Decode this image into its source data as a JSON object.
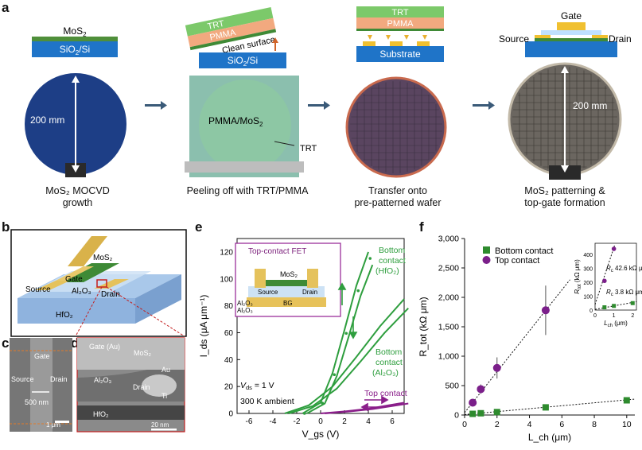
{
  "panel_a": {
    "letter": "a",
    "stack1": {
      "mos2": "MoS",
      "mos2_sub": "2",
      "substrate": "SiO",
      "substrate_sub": "2",
      "substrate_tail": "/Si"
    },
    "stack2": {
      "trt": "TRT",
      "pmma": "PMMA",
      "clean": "Clean surface",
      "substrate": "SiO",
      "substrate_sub": "2",
      "substrate_tail": "/Si"
    },
    "stack3": {
      "trt": "TRT",
      "pmma": "PMMA",
      "substrate": "Substrate"
    },
    "stack4": {
      "gate": "Gate",
      "source": "Source",
      "drain": "Drain"
    },
    "wafer1_dim": "200 mm",
    "wafer2_label": "PMMA/MoS",
    "wafer2_label_sub": "2",
    "wafer2_trt": "TRT",
    "wafer4_dim": "200 mm",
    "captions": [
      [
        "MoS₂ MOCVD",
        "growth"
      ],
      [
        "Peeling off with TRT/PMMA"
      ],
      [
        "Transfer onto",
        "pre-patterned wafer"
      ],
      [
        "MoS₂ patterning &",
        "top-gate formation"
      ]
    ]
  },
  "panel_b": {
    "letter": "b",
    "mos2": "MoS₂",
    "gate": "Gate",
    "al2o3": "Al₂O₃",
    "source": "Source",
    "drain": "Drain",
    "hfo2": "HfO₂"
  },
  "panel_c": {
    "letter": "c",
    "gate": "Gate",
    "source": "Source",
    "drain": "Drain",
    "width": "500 nm",
    "scale": "1 μm"
  },
  "panel_d": {
    "letter": "d",
    "gate": "Gate (Au)",
    "mos2": "MoS₂",
    "al2o3": "Al₂O₃",
    "au": "Au",
    "drain": "Drain",
    "ti": "Ti",
    "hfo2": "HfO₂",
    "scale": "20 nm"
  },
  "panel_e": {
    "letter": "e",
    "inset_title": "Top-contact FET",
    "inset_labels": {
      "mos2": "MoS₂",
      "source": "Source",
      "drain": "Drain",
      "al2o3": "Al₂O₃",
      "bg": "BG"
    },
    "annot_hfo2": [
      "Bottom",
      "contact",
      "(HfO₂)"
    ],
    "annot_al2o3": [
      "Bottom",
      "contact",
      "(Al₂O₃)"
    ],
    "annot_top": "Top contact",
    "annot_vds": "V",
    "annot_vds_sub": "ds",
    "annot_vds_val": " = 1 V",
    "annot_ambient": "300 K ambient",
    "colors": {
      "bottom": "#2e9e3e",
      "top": "#8a1f8a"
    }
  },
  "panel_f": {
    "letter": "f",
    "inset_rc_bottom": "3.8 kΩ μm",
    "inset_rc_top": "42.6 kΩ μm",
    "inset_ylabel": "R",
    "inset_xlabel": "L",
    "colors": {
      "bottom": "#2e8b2e",
      "top": "#7b1f8a"
    }
  },
  "chart_data": [
    {
      "type": "line",
      "panel": "e",
      "xlabel": "V_gs (V)",
      "ylabel": "I_ds (μA μm⁻¹)",
      "xlim": [
        -7,
        7
      ],
      "ylim": [
        0,
        130
      ],
      "xticks": [
        "-6",
        "-4",
        "-2",
        "0",
        "2",
        "4",
        "6"
      ],
      "yticks": [
        "0",
        "20",
        "40",
        "60",
        "80",
        "100",
        "120"
      ],
      "series": [
        {
          "name": "Bottom contact (HfO₂)",
          "x": [
            -1.5,
            0,
            1,
            2,
            3,
            4
          ],
          "y": [
            0,
            8,
            30,
            62,
            95,
            120
          ]
        },
        {
          "name": "Bottom contact (Al₂O₃)",
          "x": [
            -3,
            -1,
            1,
            3,
            5,
            7
          ],
          "y": [
            0,
            6,
            20,
            42,
            65,
            85
          ]
        },
        {
          "name": "Top contact",
          "x": [
            0,
            2,
            4,
            6,
            7
          ],
          "y": [
            0,
            1.5,
            3.5,
            6.5,
            8
          ]
        }
      ]
    },
    {
      "type": "scatter",
      "panel": "f",
      "xlabel": "L_ch (μm)",
      "ylabel": "R_tot (kΩ μm)",
      "xlim": [
        0,
        10.5
      ],
      "ylim": [
        0,
        3000
      ],
      "xticks": [
        "0",
        "2",
        "4",
        "6",
        "8",
        "10"
      ],
      "yticks": [
        "0",
        "500",
        "1,000",
        "1,500",
        "2,000",
        "2,500",
        "3,000"
      ],
      "legend": [
        "Bottom contact",
        "Top contact"
      ],
      "series": [
        {
          "name": "Bottom contact",
          "x": [
            0.5,
            1,
            2,
            5,
            10
          ],
          "y": [
            20,
            30,
            50,
            130,
            250
          ]
        },
        {
          "name": "Top contact",
          "x": [
            0.5,
            1,
            2,
            5
          ],
          "y": [
            210,
            440,
            800,
            1780
          ],
          "err": [
            40,
            80,
            180,
            420
          ]
        }
      ]
    }
  ]
}
